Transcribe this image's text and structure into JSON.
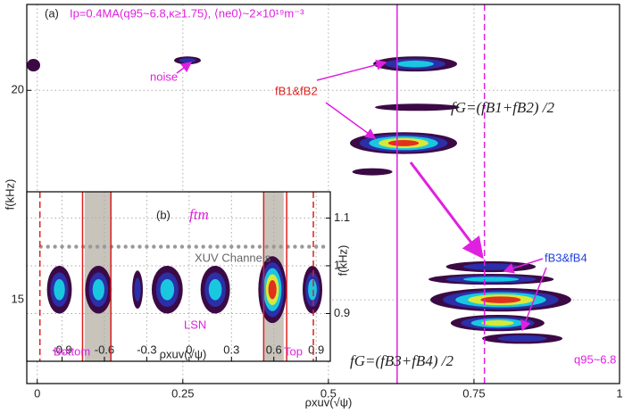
{
  "chart_data": [
    {
      "type": "contour",
      "title": "(a)",
      "subtitle": "Ip=0.4MA(q95~6.8,κ≥1.75), ⟨ne0⟩~2×10¹⁹m⁻³",
      "xlabel": "ρxuv(√ψ)",
      "ylabel": "f(kHz)",
      "xlim": [
        -0.018,
        1.0
      ],
      "ylim": [
        13,
        22.05
      ],
      "xticks": [
        0,
        0.25,
        0.5,
        0.75,
        1
      ],
      "yticks": [
        15,
        20
      ],
      "grid": true,
      "annotations": [
        "noise",
        "fB1&fB2",
        "fG=(fB1+fB2) /2",
        "fB3&fB4",
        "fG=(fB3+fB4) /2",
        "q95~6.8"
      ],
      "vlines": [
        {
          "x": 0.618,
          "color": "#e020e0",
          "dashed": false
        },
        {
          "x": 0.768,
          "color": "#e020e0",
          "dashed": true
        }
      ],
      "peaks": [
        {
          "x": [
            -0.018,
            0.005
          ],
          "y": [
            20.45,
            20.75
          ],
          "level": 1
        },
        {
          "x": [
            0.235,
            0.281
          ],
          "y": [
            20.62,
            20.81
          ],
          "level": 2
        },
        {
          "x": [
            0.577,
            0.721
          ],
          "y": [
            20.45,
            20.81
          ],
          "level": 3
        },
        {
          "x": [
            0.58,
            0.725
          ],
          "y": [
            19.51,
            19.68
          ],
          "level": 1
        },
        {
          "x": [
            0.537,
            0.721
          ],
          "y": [
            18.48,
            19.0
          ],
          "level": 5
        },
        {
          "x": [
            0.541,
            0.61
          ],
          "y": [
            17.97,
            18.14
          ],
          "level": 1
        },
        {
          "x": [
            0.702,
            0.856
          ],
          "y": [
            15.66,
            15.92
          ],
          "level": 2
        },
        {
          "x": [
            0.672,
            0.887
          ],
          "y": [
            15.36,
            15.62
          ],
          "level": 3
        },
        {
          "x": [
            0.675,
            0.917
          ],
          "y": [
            14.72,
            15.28
          ],
          "level": 5
        },
        {
          "x": [
            0.71,
            0.871
          ],
          "y": [
            14.25,
            14.64
          ],
          "level": 4
        },
        {
          "x": [
            0.764,
            0.902
          ],
          "y": [
            13.95,
            14.2
          ],
          "level": 2
        }
      ]
    },
    {
      "type": "contour",
      "title": "(b)",
      "xlabel": "ρxuv(√ψ)",
      "ylabel": "f(kHz)",
      "xlim": [
        -1.15,
        1.0
      ],
      "ylim": [
        0.8,
        1.155
      ],
      "xticks": [
        -0.9,
        -0.6,
        -0.3,
        0,
        0.3,
        0.6,
        0.9
      ],
      "yticks": [
        0.9,
        1,
        1.1
      ],
      "grid": true,
      "annotations": [
        "ftm",
        "XUV Channels",
        "LSN",
        "Bottom",
        "Top"
      ],
      "bands": [
        [
          -0.74,
          -0.55
        ],
        [
          0.53,
          0.67
        ]
      ],
      "vlines": [
        {
          "x": -1.057,
          "color": "#e02020",
          "dashed": true
        },
        {
          "x": -0.755,
          "color": "#e02020",
          "dashed": false
        },
        {
          "x": -0.554,
          "color": "#e02020",
          "dashed": false
        },
        {
          "x": 0.528,
          "color": "#e02020",
          "dashed": false
        },
        {
          "x": 0.691,
          "color": "#e02020",
          "dashed": false
        },
        {
          "x": 0.88,
          "color": "#e02020",
          "dashed": true
        }
      ],
      "channel_f": 1.04,
      "channels": [
        -1.05,
        -1.0,
        -0.95,
        -0.9,
        -0.85,
        -0.8,
        -0.75,
        -0.7,
        -0.65,
        -0.6,
        -0.55,
        -0.5,
        -0.45,
        -0.4,
        -0.35,
        -0.3,
        -0.25,
        -0.2,
        -0.15,
        -0.1,
        -0.05,
        0,
        0.05,
        0.1,
        0.15,
        0.2,
        0.25,
        0.3,
        0.35,
        0.4,
        0.45,
        0.5,
        0.55,
        0.6,
        0.65,
        0.7,
        0.75,
        0.8,
        0.85,
        0.9,
        0.95
      ],
      "peaks": [
        {
          "x": [
            -1.007,
            -0.831
          ],
          "y": [
            0.9,
            1.0
          ],
          "level": 3
        },
        {
          "x": [
            -0.736,
            -0.548
          ],
          "y": [
            0.9,
            1.0
          ],
          "level": 3
        },
        {
          "x": [
            -0.403,
            -0.328
          ],
          "y": [
            0.91,
            0.99
          ],
          "level": 2
        },
        {
          "x": [
            -0.265,
            -0.045
          ],
          "y": [
            0.9,
            1.0
          ],
          "level": 3
        },
        {
          "x": [
            0.081,
            0.289
          ],
          "y": [
            0.9,
            1.0
          ],
          "level": 3
        },
        {
          "x": [
            0.49,
            0.69
          ],
          "y": [
            0.88,
            1.02
          ],
          "level": 5
        },
        {
          "x": [
            0.804,
            0.943
          ],
          "y": [
            0.9,
            1.0
          ],
          "level": 3
        }
      ]
    }
  ]
}
